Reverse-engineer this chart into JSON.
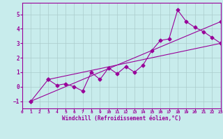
{
  "line1_x": [
    1,
    3,
    23
  ],
  "line1_y": [
    -1.0,
    0.5,
    3.0
  ],
  "line2_x": [
    3,
    4,
    5,
    6,
    7,
    8,
    9,
    10,
    11,
    12,
    13,
    14,
    15,
    16,
    17,
    18,
    19,
    20,
    21,
    22,
    23
  ],
  "line2_y": [
    0.5,
    0.1,
    0.2,
    0.0,
    -0.3,
    1.0,
    0.5,
    1.3,
    0.9,
    1.4,
    1.0,
    1.5,
    2.5,
    3.2,
    3.3,
    5.3,
    4.5,
    4.1,
    3.8,
    3.4,
    3.0
  ],
  "line3_x": [
    1,
    23
  ],
  "line3_y": [
    -1.0,
    4.5
  ],
  "color": "#990099",
  "bg_color": "#c8ecec",
  "grid_color": "#aacccc",
  "xlim": [
    0,
    23
  ],
  "ylim": [
    -1.5,
    5.8
  ],
  "yticks": [
    -1,
    0,
    1,
    2,
    3,
    4,
    5
  ],
  "xticks": [
    0,
    1,
    2,
    3,
    4,
    5,
    6,
    7,
    8,
    9,
    10,
    11,
    12,
    13,
    14,
    15,
    16,
    17,
    18,
    19,
    20,
    21,
    22,
    23
  ],
  "xlabel": "Windchill (Refroidissement éolien,°C)",
  "marker": "D",
  "markersize": 2.5,
  "linewidth": 0.8
}
